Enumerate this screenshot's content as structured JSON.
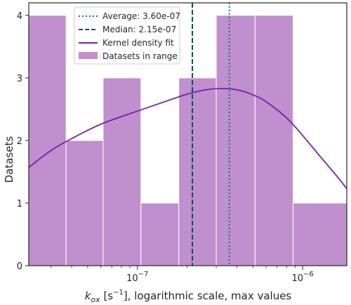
{
  "chart_data": {
    "type": "bar",
    "subtype": "histogram-with-kde",
    "xscale": "log",
    "xlim": [
      2.2e-08,
      1.85e-06
    ],
    "ylim": [
      0,
      4.2
    ],
    "xlabel": {
      "var": "k",
      "sub": "ox",
      "unit_open": " [s",
      "unit_exp": "−1",
      "unit_close": "], logarithmic scale, max values"
    },
    "ylabel": "Datasets",
    "xticks": [
      {
        "value": 1e-07,
        "base": "10",
        "exp": "−7"
      },
      {
        "value": 1e-06,
        "base": "10",
        "exp": "−6"
      }
    ],
    "yticks": [
      0,
      1,
      2,
      3,
      4
    ],
    "bins": [
      {
        "x0": 2.2e-08,
        "x1": 3.7e-08,
        "count": 4
      },
      {
        "x0": 3.7e-08,
        "x1": 6.2e-08,
        "count": 2
      },
      {
        "x0": 6.2e-08,
        "x1": 1.05e-07,
        "count": 3
      },
      {
        "x0": 1.05e-07,
        "x1": 1.78e-07,
        "count": 1
      },
      {
        "x0": 1.78e-07,
        "x1": 3e-07,
        "count": 3
      },
      {
        "x0": 3e-07,
        "x1": 5.15e-07,
        "count": 4
      },
      {
        "x0": 5.15e-07,
        "x1": 8.75e-07,
        "count": 4
      },
      {
        "x0": 8.75e-07,
        "x1": 1.85e-06,
        "count": 1
      }
    ],
    "kde": {
      "x": [
        2.2e-08,
        3e-08,
        4e-08,
        6e-08,
        1e-07,
        1.5e-07,
        2e-07,
        2.6e-07,
        3.2e-07,
        4e-07,
        5e-07,
        6e-07,
        8e-07,
        1e-06,
        1.3e-06,
        1.6e-06,
        1.85e-06
      ],
      "y": [
        1.57,
        1.84,
        2.03,
        2.26,
        2.47,
        2.63,
        2.74,
        2.81,
        2.83,
        2.81,
        2.73,
        2.62,
        2.36,
        2.08,
        1.72,
        1.44,
        1.23
      ]
    },
    "average": {
      "value": 3.6e-07,
      "label": "Average: 3.60e-07"
    },
    "median": {
      "value": 2.15e-07,
      "label": "Median: 2.15e-07"
    },
    "legend": {
      "placement": "upper-left",
      "entries": [
        "Average: 3.60e-07",
        "Median: 2.15e-07",
        "Kernel density fit",
        "Datasets in range"
      ]
    },
    "colors": {
      "bar_fill": "#c08fce",
      "bar_edge": "#ffffff",
      "kde": "#7b1fa2",
      "average": "#1f6f78",
      "median": "#0b4f5c",
      "axis": "#262626"
    }
  }
}
